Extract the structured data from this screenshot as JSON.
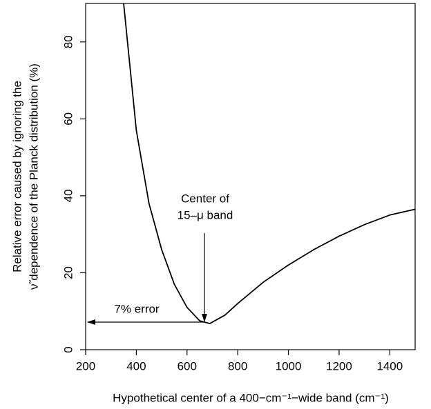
{
  "chart_data": {
    "type": "line",
    "xlabel": "Hypothetical center of a 400−cm⁻¹−wide band  (cm⁻¹)",
    "ylabel": [
      "Relative error caused by ignoring the",
      "ν̃ dependence of the Planck distribution (%)"
    ],
    "annotations": [
      "Center of",
      "15–μ band",
      "7% error"
    ],
    "x": [
      350,
      400,
      450,
      500,
      550,
      600,
      650,
      690,
      750,
      800,
      900,
      1000,
      1100,
      1200,
      1300,
      1400,
      1500
    ],
    "values": [
      90,
      57,
      38,
      26,
      17,
      11,
      7.5,
      6.8,
      9,
      12,
      17.5,
      22,
      26,
      29.5,
      32.5,
      35,
      36.5
    ],
    "color": "#000000",
    "xlim": [
      200,
      1500
    ],
    "xticks": [
      200,
      400,
      600,
      800,
      1000,
      1200,
      1400
    ],
    "ylim": [
      0,
      90
    ],
    "yticks": [
      0,
      20,
      40,
      60,
      80
    ],
    "grid": false
  }
}
